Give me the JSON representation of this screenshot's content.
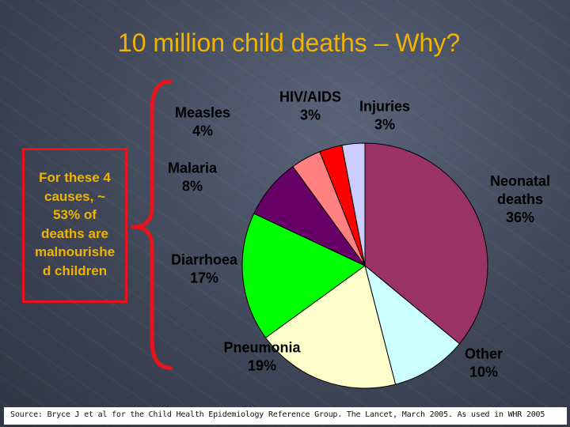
{
  "title": "10 million child deaths – Why?",
  "note": {
    "lines": [
      "For these 4",
      "causes, ~",
      "53% of",
      "deaths are",
      "malnourishe",
      "d children"
    ],
    "box_color": "#e8141c",
    "text_color": "#f0b400"
  },
  "brace_color": "#e8141c",
  "source": "Source: Bryce J et al for the Child Health Epidemiology Reference Group. The Lancet, March 2005. As used in WHR 2005",
  "chart_data": {
    "type": "pie",
    "unit": "%",
    "start_angle_deg": 0,
    "direction": "clockwise",
    "slices": [
      {
        "name": "Neonatal deaths",
        "label_lines": [
          "Neonatal",
          "deaths",
          "36%"
        ],
        "value": 36,
        "color": "#993366"
      },
      {
        "name": "Other",
        "label_lines": [
          "Other",
          "10%"
        ],
        "value": 10,
        "color": "#ccffff"
      },
      {
        "name": "Pneumonia",
        "label_lines": [
          "Pneumonia",
          "19%"
        ],
        "value": 19,
        "color": "#ffffcc"
      },
      {
        "name": "Diarrhoea",
        "label_lines": [
          "Diarrhoea",
          "17%"
        ],
        "value": 17,
        "color": "#00ff00"
      },
      {
        "name": "Malaria",
        "label_lines": [
          "Malaria",
          "8%"
        ],
        "value": 8,
        "color": "#660066"
      },
      {
        "name": "Measles",
        "label_lines": [
          "Measles",
          "4%"
        ],
        "value": 4,
        "color": "#ff8080"
      },
      {
        "name": "HIV/AIDS",
        "label_lines": [
          "HIV/AIDS",
          "3%"
        ],
        "value": 3,
        "color": "#ff0000"
      },
      {
        "name": "Injuries",
        "label_lines": [
          "Injuries",
          "3%"
        ],
        "value": 3,
        "color": "#ccccff"
      }
    ]
  }
}
